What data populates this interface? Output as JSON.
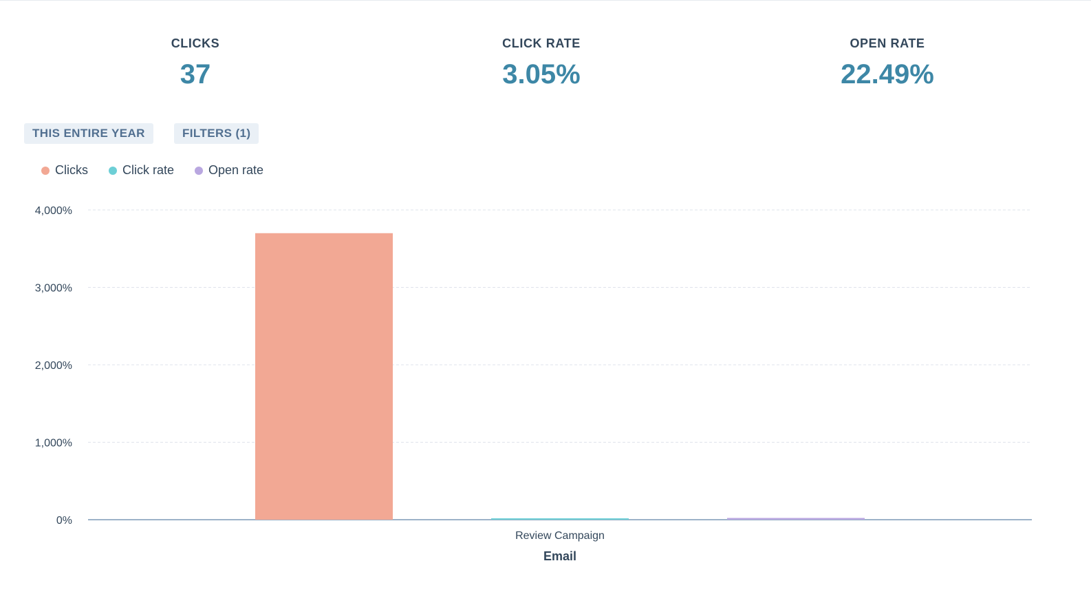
{
  "kpis": [
    {
      "label": "CLICKS",
      "value": "37"
    },
    {
      "label": "CLICK RATE",
      "value": "3.05%"
    },
    {
      "label": "OPEN RATE",
      "value": "22.49%"
    }
  ],
  "filters": {
    "date_range": "THIS ENTIRE YEAR",
    "filters_label": "FILTERS (1)"
  },
  "legend": [
    {
      "name": "Clicks",
      "color": "#f2a894"
    },
    {
      "name": "Click rate",
      "color": "#6dcfd6"
    },
    {
      "name": "Open rate",
      "color": "#b9a7e0"
    }
  ],
  "chart_data": {
    "type": "bar",
    "categories": [
      "Review Campaign"
    ],
    "xlabel": "Email",
    "ylabel": "",
    "ylim": [
      0,
      4000
    ],
    "yticks": [
      "0%",
      "1,000%",
      "2,000%",
      "3,000%",
      "4,000%"
    ],
    "ytick_values": [
      0,
      1000,
      2000,
      3000,
      4000
    ],
    "grid": true,
    "legend_position": "top-left",
    "series": [
      {
        "name": "Clicks",
        "color": "#f2a894",
        "values": [
          3700
        ]
      },
      {
        "name": "Click rate",
        "color": "#6dcfd6",
        "values": [
          3.05
        ]
      },
      {
        "name": "Open rate",
        "color": "#b9a7e0",
        "values": [
          22.49
        ]
      }
    ]
  }
}
